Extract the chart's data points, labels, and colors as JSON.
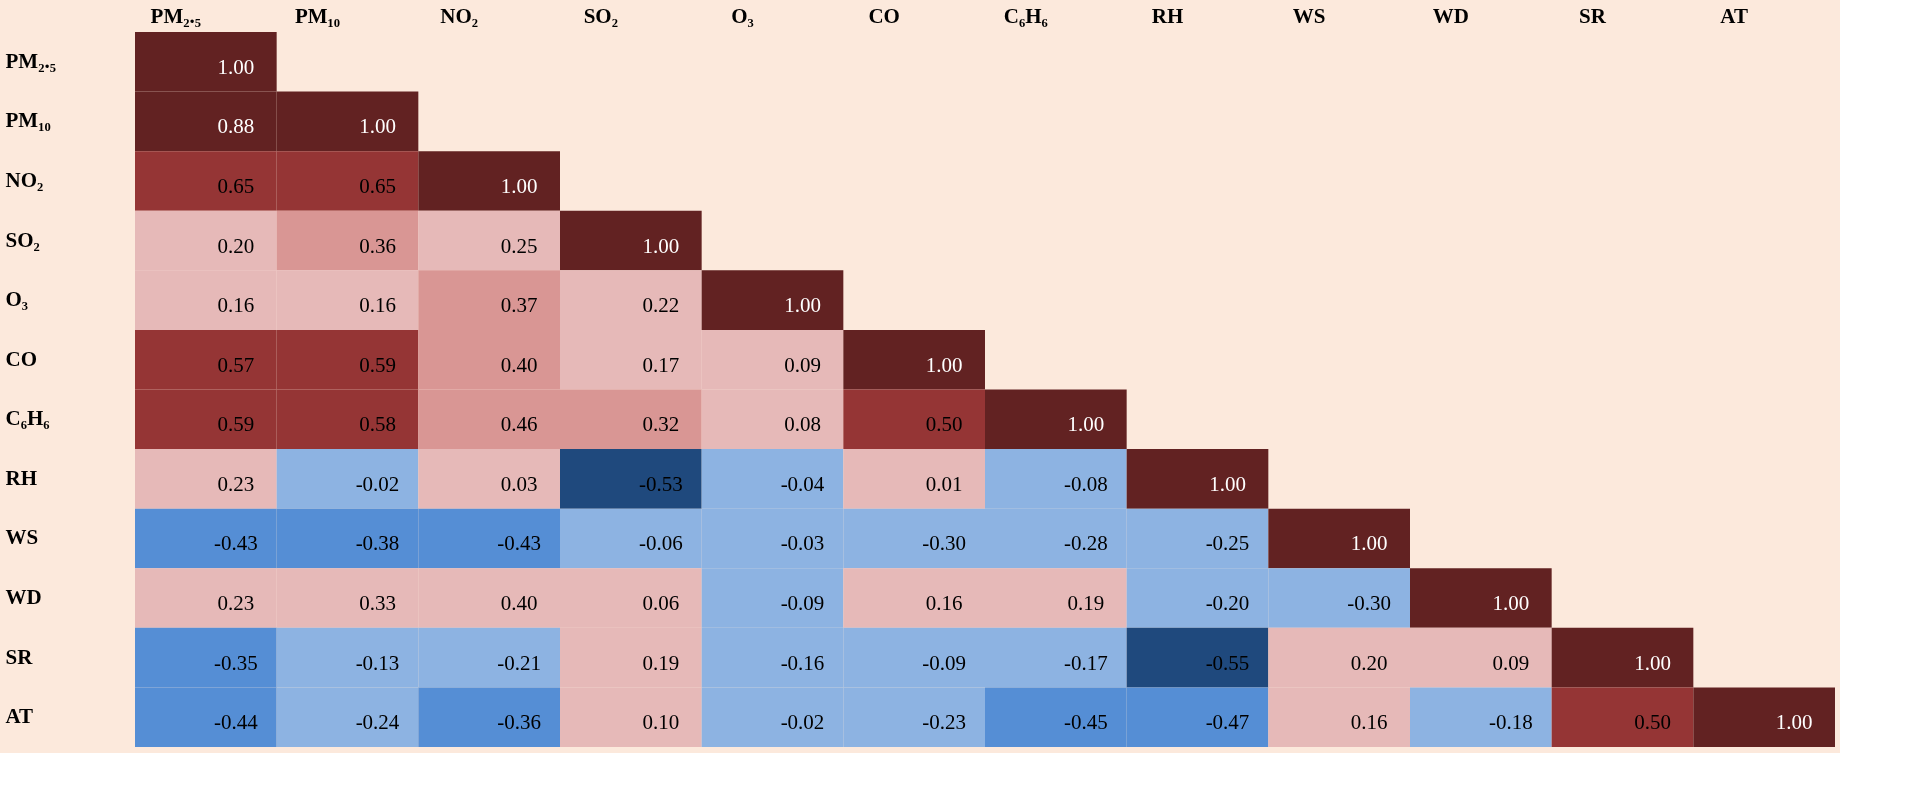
{
  "chart_data": {
    "type": "heatmap",
    "categories": [
      "PM₂.₅",
      "PM₁₀",
      "NO₂",
      "SO₂",
      "O₃",
      "CO",
      "C₆H₆",
      "RH",
      "WS",
      "WD",
      "SR",
      "AT"
    ],
    "y_categories": [
      "PM₂.₅",
      "PM₁₀",
      "NO₂",
      "SO₂",
      "O₃",
      "CO",
      "C₆H₆",
      "RH",
      "WS",
      "WD",
      "SR",
      "AT"
    ],
    "cells": [
      [
        1.0,
        null,
        null,
        null,
        null,
        null,
        null,
        null,
        null,
        null,
        null,
        null
      ],
      [
        0.88,
        1.0,
        null,
        null,
        null,
        null,
        null,
        null,
        null,
        null,
        null,
        null
      ],
      [
        0.65,
        0.65,
        1.0,
        null,
        null,
        null,
        null,
        null,
        null,
        null,
        null,
        null
      ],
      [
        0.2,
        0.36,
        0.25,
        1.0,
        null,
        null,
        null,
        null,
        null,
        null,
        null,
        null
      ],
      [
        0.16,
        0.16,
        0.37,
        0.22,
        1.0,
        null,
        null,
        null,
        null,
        null,
        null,
        null
      ],
      [
        0.57,
        0.59,
        0.4,
        0.17,
        0.09,
        1.0,
        null,
        null,
        null,
        null,
        null,
        null
      ],
      [
        0.59,
        0.58,
        0.46,
        0.32,
        0.08,
        0.5,
        1.0,
        null,
        null,
        null,
        null,
        null
      ],
      [
        0.23,
        -0.02,
        0.03,
        -0.53,
        -0.04,
        0.01,
        -0.08,
        1.0,
        null,
        null,
        null,
        null
      ],
      [
        -0.43,
        -0.38,
        -0.43,
        -0.06,
        -0.03,
        -0.3,
        -0.28,
        -0.25,
        1.0,
        null,
        null,
        null
      ],
      [
        0.23,
        0.33,
        0.4,
        0.06,
        -0.09,
        0.16,
        0.19,
        -0.2,
        -0.3,
        1.0,
        null,
        null
      ],
      [
        -0.35,
        -0.13,
        -0.21,
        0.19,
        -0.16,
        -0.09,
        -0.17,
        -0.55,
        0.2,
        0.09,
        1.0,
        null
      ],
      [
        -0.44,
        -0.24,
        -0.36,
        0.1,
        -0.02,
        -0.23,
        -0.45,
        -0.47,
        0.16,
        -0.18,
        0.5,
        1.0
      ]
    ],
    "cell_labels": [
      [
        "1.00",
        null,
        null,
        null,
        null,
        null,
        null,
        null,
        null,
        null,
        null,
        null
      ],
      [
        "0.88",
        "1.00",
        null,
        null,
        null,
        null,
        null,
        null,
        null,
        null,
        null,
        null
      ],
      [
        "0.65",
        "0.65",
        "1.00",
        null,
        null,
        null,
        null,
        null,
        null,
        null,
        null,
        null
      ],
      [
        "0.20",
        "0.36",
        "0.25",
        "1.00",
        null,
        null,
        null,
        null,
        null,
        null,
        null,
        null
      ],
      [
        "0.16",
        "0.16",
        "0.37",
        "0.22",
        "1.00",
        null,
        null,
        null,
        null,
        null,
        null,
        null
      ],
      [
        "0.57",
        "0.59",
        "0.40",
        "0.17",
        "0.09",
        "1.00",
        null,
        null,
        null,
        null,
        null,
        null
      ],
      [
        "0.59",
        "0.58",
        "0.46",
        "0.32",
        "0.08",
        "0.50",
        "1.00",
        null,
        null,
        null,
        null,
        null
      ],
      [
        "0.23",
        "-0.02",
        "0.03",
        "-0.53",
        "-0.04",
        "0.01",
        "-0.08",
        "1.00",
        null,
        null,
        null,
        null
      ],
      [
        "-0.43",
        "-0.38",
        "-0.43",
        "-0.06",
        "-0.03",
        "-0.30",
        "-0.28",
        "-0.25",
        "1.00",
        null,
        null,
        null
      ],
      [
        "0.23",
        "0.33",
        "0.40",
        "0.06",
        "-0.09",
        "0.16",
        "0.19",
        "-0.20",
        "-0.30",
        "1.00",
        null,
        null
      ],
      [
        "-0.35",
        "-0.13",
        "-0.21",
        "0.19",
        "-0.16",
        "-0.09",
        "-0.17",
        "-0.55",
        "0.20",
        "0.09",
        "1.00",
        null
      ],
      [
        "-0.44",
        "-0.24",
        "-0.36",
        "0.10",
        "-0.02",
        "-0.23",
        "-0.45",
        "-0.47",
        "0.16",
        "-0.18",
        "0.50",
        "1.00"
      ]
    ],
    "colors": [
      [
        "#622222",
        null,
        null,
        null,
        null,
        null,
        null,
        null,
        null,
        null,
        null,
        null
      ],
      [
        "#622222",
        "#622222",
        null,
        null,
        null,
        null,
        null,
        null,
        null,
        null,
        null,
        null
      ],
      [
        "#953535",
        "#953535",
        "#622222",
        null,
        null,
        null,
        null,
        null,
        null,
        null,
        null,
        null
      ],
      [
        "#e6b9b8",
        "#d99694",
        "#e6b9b8",
        "#622222",
        null,
        null,
        null,
        null,
        null,
        null,
        null,
        null
      ],
      [
        "#e6b9b8",
        "#e6b9b8",
        "#d99694",
        "#e6b9b8",
        "#622222",
        null,
        null,
        null,
        null,
        null,
        null,
        null
      ],
      [
        "#953535",
        "#953535",
        "#d99694",
        "#e6b9b8",
        "#e6b9b8",
        "#622222",
        null,
        null,
        null,
        null,
        null,
        null
      ],
      [
        "#953535",
        "#953535",
        "#d99694",
        "#d99694",
        "#e6b9b8",
        "#953535",
        "#622222",
        null,
        null,
        null,
        null,
        null
      ],
      [
        "#e6b9b8",
        "#8db3e2",
        "#e6b9b8",
        "#1f497d",
        "#8db3e2",
        "#e6b9b8",
        "#8db3e2",
        "#622222",
        null,
        null,
        null,
        null
      ],
      [
        "#558ed5",
        "#558ed5",
        "#558ed5",
        "#8db3e2",
        "#8db3e2",
        "#8db3e2",
        "#8db3e2",
        "#8db3e2",
        "#622222",
        null,
        null,
        null
      ],
      [
        "#e6b9b8",
        "#e6b9b8",
        "#e6b9b8",
        "#e6b9b8",
        "#8db3e2",
        "#e6b9b8",
        "#e6b9b8",
        "#8db3e2",
        "#8db3e2",
        "#622222",
        null,
        null
      ],
      [
        "#558ed5",
        "#8db3e2",
        "#8db3e2",
        "#e6b9b8",
        "#8db3e2",
        "#8db3e2",
        "#8db3e2",
        "#1f497d",
        "#e6b9b8",
        "#e6b9b8",
        "#622222",
        null
      ],
      [
        "#558ed5",
        "#8db3e2",
        "#558ed5",
        "#e6b9b8",
        "#8db3e2",
        "#8db3e2",
        "#558ed5",
        "#558ed5",
        "#e6b9b8",
        "#8db3e2",
        "#953535",
        "#622222"
      ]
    ],
    "data_labels": true
  }
}
